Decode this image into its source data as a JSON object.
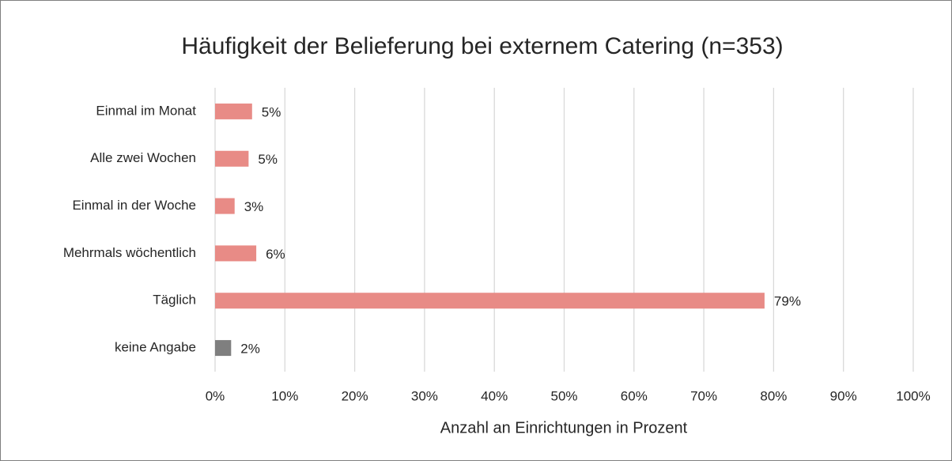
{
  "chart_data": {
    "type": "hbar",
    "title": "Häufigkeit der Belieferung bei externem Catering (n=353)",
    "x_label": "Anzahl an Einrichtungen in Prozent",
    "categories": [
      "Einmal im Monat",
      "Alle zwei Wochen",
      "Einmal in der Woche",
      "Mehrmals wöchentlich",
      "Täglich",
      "keine Angabe"
    ],
    "values": [
      5.3,
      4.8,
      2.8,
      5.9,
      78.7,
      2.3
    ],
    "value_labels": [
      "5%",
      "5%",
      "3%",
      "6%",
      "79%",
      "2%"
    ],
    "colors": [
      "#e88b86",
      "#e88b86",
      "#e88b86",
      "#e88b86",
      "#e88b86",
      "#7f7f7f"
    ],
    "xlim": [
      0,
      100
    ],
    "xticks": [
      {
        "value": 0,
        "label": "0%"
      },
      {
        "value": 10,
        "label": "10%"
      },
      {
        "value": 20,
        "label": "20%"
      },
      {
        "value": 30,
        "label": "30%"
      },
      {
        "value": 40,
        "label": "40%"
      },
      {
        "value": 50,
        "label": "50%"
      },
      {
        "value": 60,
        "label": "60%"
      },
      {
        "value": 70,
        "label": "70%"
      },
      {
        "value": 80,
        "label": "80%"
      },
      {
        "value": 90,
        "label": "90%"
      },
      {
        "value": 100,
        "label": "100%"
      }
    ],
    "grid": true
  }
}
